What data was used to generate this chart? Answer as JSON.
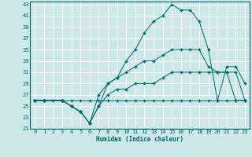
{
  "xlabel": "Humidex (Indice chaleur)",
  "bg_color": "#cce8e8",
  "grid_color": "#ffffff",
  "line_color": "#006666",
  "xmin": 0,
  "xmax": 23,
  "ymin": 21,
  "ymax": 43,
  "yticks": [
    21,
    23,
    25,
    27,
    29,
    31,
    33,
    35,
    37,
    39,
    41,
    43
  ],
  "xticks": [
    0,
    1,
    2,
    3,
    4,
    5,
    6,
    7,
    8,
    9,
    10,
    11,
    12,
    13,
    14,
    15,
    16,
    17,
    18,
    19,
    20,
    21,
    22,
    23
  ],
  "line1_x": [
    0,
    1,
    2,
    3,
    4,
    5,
    6,
    7,
    8,
    9,
    10,
    11,
    12,
    13,
    14,
    15,
    16,
    17,
    18,
    19,
    20,
    21,
    22,
    23
  ],
  "line1_y": [
    26,
    26,
    26,
    26,
    26,
    26,
    26,
    26,
    26,
    26,
    26,
    26,
    26,
    26,
    26,
    26,
    26,
    26,
    26,
    26,
    26,
    26,
    26,
    26
  ],
  "line2_x": [
    0,
    1,
    3,
    4,
    5,
    6,
    7,
    8,
    9,
    10,
    11,
    12,
    13,
    14,
    15,
    16,
    17,
    18,
    19,
    20,
    21,
    22,
    23
  ],
  "line2_y": [
    26,
    26,
    26,
    25,
    24,
    22,
    25,
    27,
    28,
    28,
    29,
    29,
    29,
    30,
    31,
    31,
    31,
    31,
    31,
    31,
    31,
    31,
    26
  ],
  "line3_x": [
    0,
    1,
    3,
    4,
    5,
    6,
    7,
    8,
    9,
    10,
    11,
    12,
    13,
    14,
    15,
    16,
    17,
    18,
    19,
    20,
    21,
    22,
    23
  ],
  "line3_y": [
    26,
    26,
    26,
    25,
    24,
    22,
    25,
    29,
    30,
    31,
    32,
    33,
    33,
    34,
    35,
    35,
    35,
    35,
    32,
    31,
    31,
    26,
    26
  ],
  "line4_x": [
    0,
    1,
    3,
    4,
    5,
    6,
    7,
    8,
    9,
    10,
    11,
    12,
    13,
    14,
    15,
    16,
    17,
    18,
    19,
    20,
    21,
    22,
    23
  ],
  "line4_y": [
    26,
    26,
    26,
    25,
    24,
    22,
    27,
    29,
    30,
    33,
    35,
    38,
    40,
    41,
    43,
    42,
    42,
    40,
    35,
    26,
    32,
    32,
    29
  ]
}
